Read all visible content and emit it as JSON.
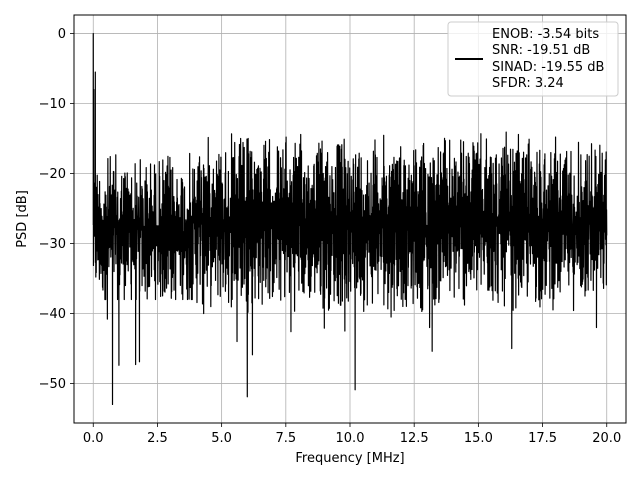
{
  "chart_data": {
    "type": "line",
    "title": "",
    "xlabel": "Frequency [MHz]",
    "ylabel": "PSD [dB]",
    "xlim": [
      -0.75,
      20.75
    ],
    "ylim": [
      -55.65,
      2.65
    ],
    "x_ticks": [
      0.0,
      2.5,
      5.0,
      7.5,
      10.0,
      12.5,
      15.0,
      17.5,
      20.0
    ],
    "x_tick_labels": [
      "0.0",
      "2.5",
      "5.0",
      "7.5",
      "10.0",
      "12.5",
      "15.0",
      "17.5",
      "20.0"
    ],
    "y_ticks": [
      0,
      -10,
      -20,
      -30,
      -40,
      -50
    ],
    "y_tick_labels": [
      "0",
      "−10",
      "−20",
      "−30",
      "−40",
      "−50"
    ],
    "grid": true,
    "legend_position": "top-right",
    "legend_lines": [
      "ENOB: -3.54 bits",
      "SNR: -19.51 dB",
      "SINAD: -19.55 dB",
      "SFDR: 3.24"
    ],
    "series": [
      {
        "color": "#000000",
        "x_range": [
          0.0,
          20.0
        ],
        "noise_floor_db": [
          -38,
          -10
        ],
        "peaks": [
          {
            "x": 0.0,
            "y": 0.0
          },
          {
            "x": 0.02,
            "y": -8.0
          },
          {
            "x": 0.08,
            "y": -5.5
          }
        ],
        "notable_dips": [
          {
            "x": 0.55,
            "y": -40.8
          },
          {
            "x": 0.75,
            "y": -53.0
          },
          {
            "x": 1.0,
            "y": -47.4
          },
          {
            "x": 1.65,
            "y": -47.3
          },
          {
            "x": 1.8,
            "y": -46.9
          },
          {
            "x": 4.3,
            "y": -40.0
          },
          {
            "x": 5.6,
            "y": -44.0
          },
          {
            "x": 6.0,
            "y": -51.9
          },
          {
            "x": 6.2,
            "y": -45.9
          },
          {
            "x": 7.7,
            "y": -42.6
          },
          {
            "x": 9.0,
            "y": -42.1
          },
          {
            "x": 9.8,
            "y": -42.5
          },
          {
            "x": 10.2,
            "y": -50.9
          },
          {
            "x": 11.6,
            "y": -40.5
          },
          {
            "x": 13.1,
            "y": -42.0
          },
          {
            "x": 13.2,
            "y": -45.4
          },
          {
            "x": 16.3,
            "y": -45.0
          },
          {
            "x": 19.6,
            "y": -42.0
          }
        ]
      }
    ]
  }
}
